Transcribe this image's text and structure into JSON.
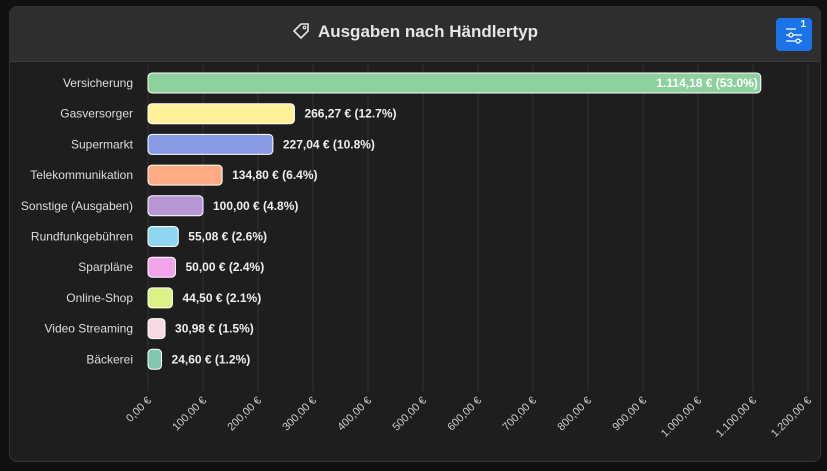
{
  "header": {
    "title": "Ausgaben nach Händlertyp",
    "title_icon": "tag-icon",
    "filter_button_icon": "sliders-icon",
    "filter_count": "1",
    "accent": "#1a73e8"
  },
  "chart_data": {
    "type": "bar",
    "orientation": "horizontal",
    "categories": [
      "Versicherung",
      "Gasversorger",
      "Supermarkt",
      "Telekommunikation",
      "Sonstige (Ausgaben)",
      "Rundfunkgebühren",
      "Sparpläne",
      "Online-Shop",
      "Video Streaming",
      "Bäckerei"
    ],
    "values": [
      1114.18,
      266.27,
      227.04,
      134.8,
      100.0,
      55.08,
      50.0,
      44.5,
      30.98,
      24.6
    ],
    "labels": [
      "1.114,18 € (53.0%)",
      "266,27 € (12.7%)",
      "227,04 € (10.8%)",
      "134,80 € (6.4%)",
      "100,00 € (4.8%)",
      "55,08 € (2.6%)",
      "50,00 € (2.4%)",
      "44,50 € (2.1%)",
      "30,98 € (1.5%)",
      "24,60 € (1.2%)"
    ],
    "colors": [
      "#8fd19e",
      "#fff09a",
      "#8b9ae6",
      "#ffab84",
      "#b696d3",
      "#8ed6f0",
      "#f3a3ea",
      "#dcf287",
      "#fbd9e3",
      "#7fc8ae"
    ],
    "xlim": [
      0,
      1200
    ],
    "xticks": [
      "0,00 €",
      "100,00 €",
      "200,00 €",
      "300,00 €",
      "400,00 €",
      "500,00 €",
      "600,00 €",
      "700,00 €",
      "800,00 €",
      "900,00 €",
      "1.000,00 €",
      "1.100,00 €",
      "1.200,00 €"
    ],
    "grid": true
  }
}
